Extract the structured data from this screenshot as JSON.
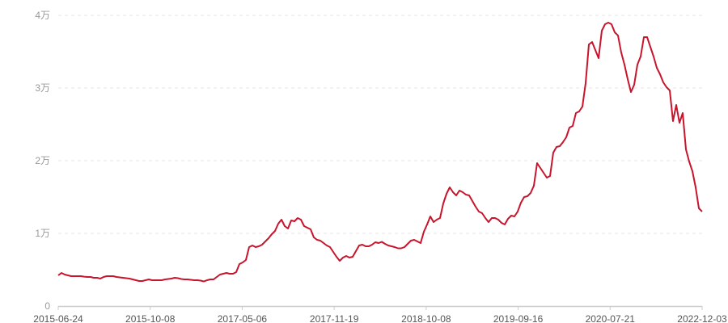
{
  "chart_data": {
    "type": "line",
    "title": "",
    "xlabel": "",
    "ylabel": "",
    "ylim": [
      0,
      40000
    ],
    "y_ticks": [
      0,
      10000,
      20000,
      30000,
      40000
    ],
    "y_tick_labels": [
      "0",
      "1万",
      "2万",
      "3万",
      "4万"
    ],
    "x_tick_labels": [
      "2015-06-24",
      "2015-10-08",
      "2017-05-06",
      "2017-11-19",
      "2018-10-08",
      "2019-09-16",
      "2020-07-21",
      "2022-12-03"
    ],
    "grid": true,
    "line_color": "#c8142c",
    "values": [
      4220,
      4560,
      4330,
      4220,
      4110,
      4110,
      4110,
      4110,
      4050,
      4000,
      4000,
      3890,
      3890,
      3780,
      4000,
      4110,
      4110,
      4110,
      4000,
      3940,
      3890,
      3830,
      3780,
      3670,
      3560,
      3440,
      3440,
      3560,
      3670,
      3560,
      3560,
      3560,
      3560,
      3670,
      3720,
      3780,
      3890,
      3830,
      3720,
      3670,
      3670,
      3610,
      3560,
      3560,
      3500,
      3390,
      3560,
      3670,
      3670,
      4000,
      4330,
      4440,
      4560,
      4440,
      4440,
      4670,
      5780,
      6000,
      6330,
      8110,
      8330,
      8110,
      8220,
      8440,
      8890,
      9330,
      9890,
      10330,
      11330,
      11890,
      11000,
      10670,
      11780,
      11670,
      12110,
      11890,
      11000,
      10780,
      10560,
      9440,
      9110,
      9000,
      8670,
      8330,
      8110,
      7440,
      6780,
      6220,
      6670,
      6890,
      6670,
      6780,
      7560,
      8330,
      8440,
      8220,
      8220,
      8440,
      8780,
      8670,
      8830,
      8560,
      8330,
      8220,
      8110,
      7940,
      7940,
      8110,
      8560,
      9000,
      9110,
      8890,
      8670,
      10220,
      11220,
      12330,
      11560,
      11890,
      12110,
      14110,
      15440,
      16330,
      15670,
      15220,
      15890,
      15670,
      15330,
      15220,
      14440,
      13670,
      13000,
      12780,
      12110,
      11560,
      12110,
      12110,
      11890,
      11440,
      11220,
      12000,
      12440,
      12330,
      13000,
      14220,
      15000,
      15110,
      15560,
      16560,
      19670,
      19000,
      18330,
      17670,
      17890,
      21110,
      21890,
      22000,
      22560,
      23220,
      24560,
      24780,
      26560,
      26780,
      27440,
      30670,
      36000,
      36330,
      35220,
      34110,
      37890,
      38780,
      39000,
      38780,
      37670,
      37220,
      34890,
      33220,
      31220,
      29440,
      30440,
      33220,
      34330,
      37000,
      37000,
      35670,
      34330,
      32780,
      31890,
      30780,
      30110,
      29670,
      25440,
      27670,
      25220,
      26560,
      21560,
      19890,
      18560,
      16330,
      13440,
      13000
    ]
  }
}
